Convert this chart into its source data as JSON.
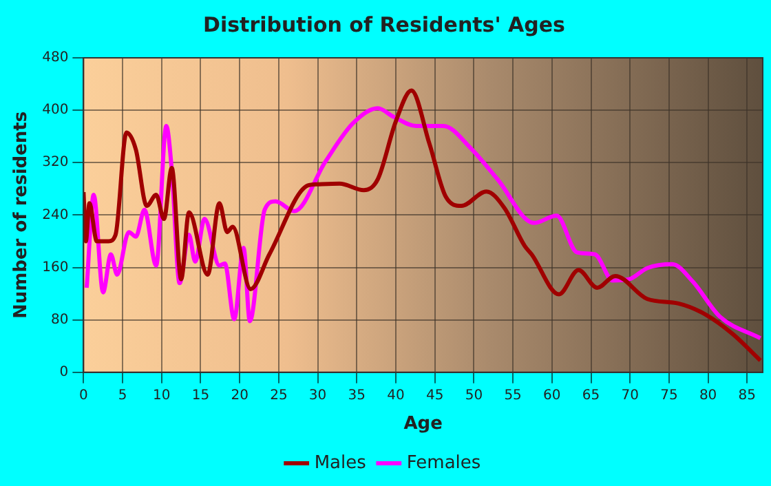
{
  "chart_data": {
    "type": "line",
    "title": "Distribution of Residents' Ages",
    "xlabel": "Age",
    "ylabel": "Number of residents",
    "xlim": [
      0,
      87
    ],
    "xticks": [
      0,
      5,
      10,
      15,
      20,
      25,
      30,
      35,
      40,
      45,
      50,
      55,
      60,
      65,
      70,
      75,
      80,
      85
    ],
    "ylim": [
      0,
      480
    ],
    "yticks": [
      0,
      80,
      160,
      240,
      320,
      400,
      480
    ],
    "grid": true,
    "legend": "bottom",
    "marker": "none",
    "series": [
      {
        "name": "Males",
        "color": "#a00000",
        "x": [
          0,
          0.3,
          0.75,
          1.7,
          3.2,
          4.1,
          5.5,
          6.7,
          8.1,
          9.3,
          10.3,
          11.3,
          12.5,
          13.5,
          15.9,
          17.4,
          18.4,
          19.1,
          21.4,
          23.8,
          28.7,
          29.9,
          32.8,
          35.9,
          37.7,
          40,
          42,
          44.3,
          46.4,
          48.4,
          51.6,
          53.9,
          56.5,
          57.4,
          60.9,
          63.4,
          65.8,
          68.1,
          72.2,
          76.2,
          79.7,
          83.2,
          86.7
        ],
        "values": [
          275,
          200,
          258,
          200,
          200,
          210,
          366,
          340,
          254,
          271,
          234,
          312,
          142,
          244,
          149,
          258,
          214,
          222,
          127,
          180,
          285,
          287,
          288,
          278,
          295,
          383,
          430,
          349,
          268,
          254,
          276,
          251,
          193,
          180,
          119,
          156,
          129,
          147,
          112,
          105,
          88,
          58,
          18
        ]
      },
      {
        "name": "Females",
        "color": "#ff00ff",
        "x": [
          0.4,
          1.3,
          2.5,
          3.5,
          4.3,
          5.8,
          6.7,
          7.8,
          9.3,
          10.6,
          11.3,
          12.3,
          13.5,
          14.3,
          15.5,
          17.4,
          18.1,
          19.3,
          20.5,
          21.3,
          23.2,
          24.6,
          27,
          31,
          34.5,
          37.7,
          39.7,
          42.6,
          46.1,
          49.6,
          53,
          57.7,
          60.6,
          63.2,
          65.5,
          67.8,
          69.9,
          72.2,
          75.4,
          78,
          81.5,
          86.7
        ],
        "values": [
          129,
          271,
          122,
          180,
          149,
          214,
          207,
          248,
          163,
          376,
          309,
          136,
          210,
          169,
          234,
          163,
          166,
          81,
          190,
          78,
          248,
          261,
          246,
          322,
          380,
          403,
          390,
          376,
          376,
          342,
          295,
          228,
          239,
          183,
          180,
          140,
          142,
          159,
          165,
          139,
          85,
          52
        ]
      }
    ]
  }
}
